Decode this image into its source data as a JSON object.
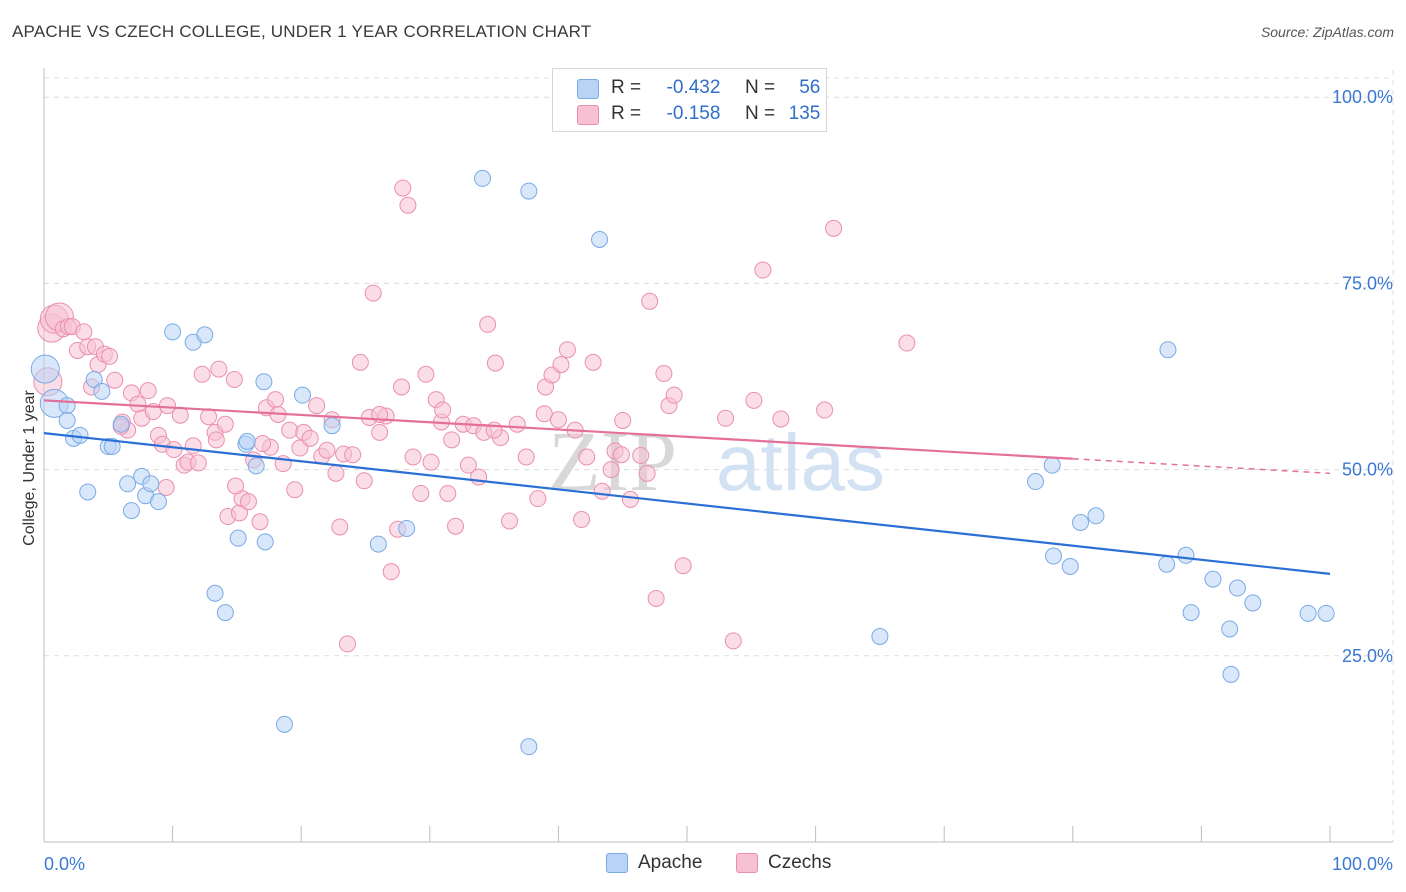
{
  "title": "APACHE VS CZECH COLLEGE, UNDER 1 YEAR CORRELATION CHART",
  "source": "Source: ZipAtlas.com",
  "watermark": {
    "zip": "ZIP",
    "atlas": "atlas"
  },
  "legend": {
    "r_label": "R =",
    "n_label": "N =",
    "rows": [
      {
        "r": "-0.432",
        "n": "56"
      },
      {
        "r": "-0.158",
        "n": "135"
      }
    ]
  },
  "colors": {
    "apache_fill": "#b8d3f5",
    "apache_stroke": "#7aaae6",
    "apache_line": "#2b6fd4",
    "czech_fill": "#f7c1d3",
    "czech_stroke": "#ea8fb0",
    "czech_line": "#e4709a",
    "axis_label": "#3a78d4",
    "grid": "#dcdcdc"
  },
  "chart_data": {
    "type": "scatter",
    "title": "APACHE VS CZECH COLLEGE, UNDER 1 YEAR CORRELATION CHART",
    "xlabel": "",
    "ylabel": "College, Under 1 year",
    "xlim": [
      0,
      100
    ],
    "ylim": [
      0,
      105
    ],
    "x_tick_labels": [
      "0.0%",
      "100.0%"
    ],
    "y_ticks": [
      {
        "value": 25,
        "label": "25.0%"
      },
      {
        "value": 50,
        "label": "50.0%"
      },
      {
        "value": 75,
        "label": "75.0%"
      },
      {
        "value": 100,
        "label": "100.0%"
      }
    ],
    "grid": "horizontal dashed",
    "legend_position": "bottom",
    "series": [
      {
        "name": "Apache",
        "r": -0.432,
        "n": 56,
        "trend": {
          "x": [
            0,
            100
          ],
          "y": [
            54.9,
            36.0
          ],
          "dashed_from": null
        },
        "points": [
          [
            0.1,
            63.5
          ],
          [
            0.8,
            58.9
          ],
          [
            1.8,
            58.6
          ],
          [
            1.8,
            56.6
          ],
          [
            2.3,
            54.2
          ],
          [
            2.8,
            54.6
          ],
          [
            3.4,
            47.0
          ],
          [
            3.9,
            62.1
          ],
          [
            4.5,
            60.5
          ],
          [
            5.0,
            53.1
          ],
          [
            5.3,
            53.1
          ],
          [
            6.0,
            56.1
          ],
          [
            6.5,
            48.1
          ],
          [
            6.8,
            44.5
          ],
          [
            7.6,
            49.1
          ],
          [
            7.9,
            46.5
          ],
          [
            8.3,
            48.1
          ],
          [
            8.9,
            45.7
          ],
          [
            10.0,
            68.5
          ],
          [
            11.6,
            67.1
          ],
          [
            12.5,
            68.1
          ],
          [
            13.3,
            33.4
          ],
          [
            14.1,
            30.8
          ],
          [
            15.1,
            40.8
          ],
          [
            15.7,
            53.4
          ],
          [
            15.8,
            53.8
          ],
          [
            16.5,
            50.5
          ],
          [
            17.1,
            61.8
          ],
          [
            17.2,
            40.3
          ],
          [
            18.7,
            15.8
          ],
          [
            20.1,
            60.0
          ],
          [
            22.4,
            55.9
          ],
          [
            26.0,
            40.0
          ],
          [
            28.2,
            42.1
          ],
          [
            34.1,
            89.1
          ],
          [
            37.7,
            87.4
          ],
          [
            37.7,
            12.8
          ],
          [
            43.2,
            80.9
          ],
          [
            65.0,
            27.6
          ],
          [
            77.1,
            48.4
          ],
          [
            78.4,
            50.6
          ],
          [
            78.5,
            38.4
          ],
          [
            79.8,
            37.0
          ],
          [
            80.6,
            42.9
          ],
          [
            81.8,
            43.8
          ],
          [
            87.4,
            66.1
          ],
          [
            87.3,
            37.3
          ],
          [
            88.8,
            38.5
          ],
          [
            89.2,
            30.8
          ],
          [
            90.9,
            35.3
          ],
          [
            92.2,
            28.6
          ],
          [
            92.3,
            22.5
          ],
          [
            92.8,
            34.1
          ],
          [
            94.0,
            32.1
          ],
          [
            98.3,
            30.7
          ],
          [
            99.7,
            30.7
          ]
        ]
      },
      {
        "name": "Czechs",
        "r": -0.158,
        "n": 135,
        "trend": {
          "x": [
            0,
            100
          ],
          "y": [
            59.3,
            49.5
          ],
          "dashed_from": 80
        },
        "points": [
          [
            0.3,
            61.8
          ],
          [
            0.6,
            69.0
          ],
          [
            0.8,
            70.2
          ],
          [
            1.2,
            70.5
          ],
          [
            1.5,
            68.9
          ],
          [
            1.9,
            69.2
          ],
          [
            2.2,
            69.2
          ],
          [
            2.6,
            66.0
          ],
          [
            3.1,
            68.5
          ],
          [
            3.4,
            66.5
          ],
          [
            3.7,
            61.1
          ],
          [
            4.0,
            66.5
          ],
          [
            4.2,
            64.1
          ],
          [
            4.7,
            65.5
          ],
          [
            5.1,
            65.2
          ],
          [
            5.5,
            62.0
          ],
          [
            6.1,
            56.4
          ],
          [
            6.5,
            55.3
          ],
          [
            6.8,
            60.3
          ],
          [
            7.3,
            58.8
          ],
          [
            7.6,
            56.9
          ],
          [
            8.1,
            60.6
          ],
          [
            8.5,
            57.8
          ],
          [
            8.9,
            54.6
          ],
          [
            9.2,
            53.4
          ],
          [
            9.6,
            58.6
          ],
          [
            10.1,
            52.7
          ],
          [
            10.6,
            57.3
          ],
          [
            10.9,
            50.6
          ],
          [
            11.2,
            51.0
          ],
          [
            11.6,
            53.2
          ],
          [
            12.0,
            50.9
          ],
          [
            12.3,
            62.8
          ],
          [
            12.8,
            57.1
          ],
          [
            13.3,
            55.0
          ],
          [
            13.6,
            63.5
          ],
          [
            14.1,
            56.1
          ],
          [
            14.3,
            43.7
          ],
          [
            14.8,
            62.1
          ],
          [
            15.2,
            44.2
          ],
          [
            15.4,
            46.1
          ],
          [
            15.9,
            45.7
          ],
          [
            16.3,
            51.3
          ],
          [
            16.8,
            43.0
          ],
          [
            17.3,
            58.3
          ],
          [
            17.6,
            53.0
          ],
          [
            18.0,
            59.4
          ],
          [
            18.6,
            50.8
          ],
          [
            19.1,
            55.3
          ],
          [
            19.5,
            47.3
          ],
          [
            19.9,
            52.9
          ],
          [
            20.2,
            55.0
          ],
          [
            20.7,
            54.2
          ],
          [
            21.2,
            58.6
          ],
          [
            21.6,
            51.8
          ],
          [
            22.0,
            52.6
          ],
          [
            22.4,
            56.7
          ],
          [
            23.0,
            42.3
          ],
          [
            23.3,
            52.1
          ],
          [
            23.6,
            26.6
          ],
          [
            24.0,
            52.0
          ],
          [
            24.6,
            64.4
          ],
          [
            24.9,
            48.5
          ],
          [
            25.3,
            57.0
          ],
          [
            25.6,
            73.7
          ],
          [
            26.1,
            55.0
          ],
          [
            26.6,
            57.2
          ],
          [
            27.0,
            36.3
          ],
          [
            27.5,
            42.0
          ],
          [
            27.9,
            87.8
          ],
          [
            28.3,
            85.5
          ],
          [
            28.7,
            51.7
          ],
          [
            29.3,
            46.8
          ],
          [
            29.7,
            62.8
          ],
          [
            30.1,
            51.0
          ],
          [
            30.5,
            59.4
          ],
          [
            30.9,
            56.4
          ],
          [
            31.4,
            46.8
          ],
          [
            31.7,
            54.0
          ],
          [
            32.0,
            42.4
          ],
          [
            32.6,
            56.1
          ],
          [
            33.0,
            50.6
          ],
          [
            33.4,
            55.9
          ],
          [
            33.8,
            49.0
          ],
          [
            34.2,
            55.0
          ],
          [
            34.5,
            69.5
          ],
          [
            35.1,
            64.3
          ],
          [
            35.5,
            54.3
          ],
          [
            36.2,
            43.1
          ],
          [
            36.8,
            56.1
          ],
          [
            37.5,
            51.7
          ],
          [
            38.4,
            46.1
          ],
          [
            39.0,
            61.1
          ],
          [
            39.5,
            62.7
          ],
          [
            40.0,
            56.7
          ],
          [
            40.2,
            64.1
          ],
          [
            40.7,
            66.1
          ],
          [
            41.3,
            55.3
          ],
          [
            41.8,
            43.3
          ],
          [
            42.2,
            51.7
          ],
          [
            42.7,
            64.4
          ],
          [
            43.4,
            47.1
          ],
          [
            44.1,
            50.0
          ],
          [
            44.4,
            52.5
          ],
          [
            45.0,
            56.6
          ],
          [
            45.6,
            46.0
          ],
          [
            46.4,
            51.9
          ],
          [
            47.1,
            72.6
          ],
          [
            47.6,
            32.7
          ],
          [
            48.2,
            62.9
          ],
          [
            48.6,
            58.6
          ],
          [
            49.0,
            60.0
          ],
          [
            49.7,
            37.1
          ],
          [
            53.0,
            56.9
          ],
          [
            53.6,
            27.0
          ],
          [
            55.2,
            59.3
          ],
          [
            55.9,
            76.8
          ],
          [
            57.3,
            56.8
          ],
          [
            60.7,
            58.0
          ],
          [
            61.4,
            82.4
          ],
          [
            67.1,
            67.0
          ],
          [
            6.0,
            55.8
          ],
          [
            13.4,
            54.0
          ],
          [
            18.2,
            57.4
          ],
          [
            22.7,
            49.5
          ],
          [
            27.8,
            61.1
          ],
          [
            31.0,
            58.0
          ],
          [
            38.9,
            57.5
          ],
          [
            44.9,
            52.0
          ],
          [
            17.0,
            53.5
          ],
          [
            9.5,
            47.6
          ],
          [
            14.9,
            47.8
          ],
          [
            26.1,
            57.4
          ],
          [
            35.0,
            55.3
          ],
          [
            46.9,
            49.5
          ]
        ]
      }
    ]
  },
  "bottom_legend": [
    "Apache",
    "Czechs"
  ]
}
